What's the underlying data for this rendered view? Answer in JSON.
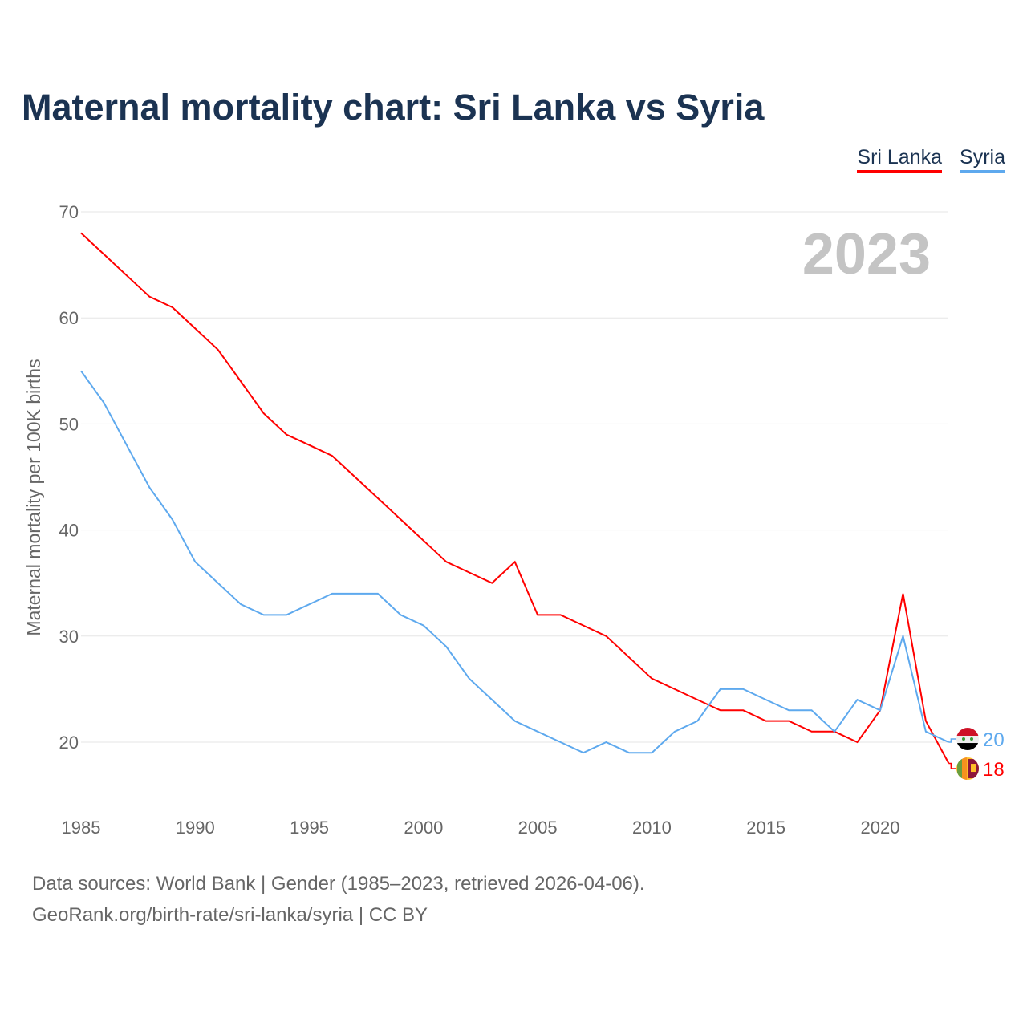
{
  "chart_data": {
    "type": "line",
    "title": "Maternal mortality chart: Sri Lanka vs Syria",
    "xlabel": "",
    "ylabel": "Maternal mortality per 100K births",
    "ylim": [
      15,
      70
    ],
    "xlim": [
      1985,
      2023
    ],
    "yticks": [
      20,
      30,
      40,
      50,
      60,
      70
    ],
    "xticks": [
      1985,
      1990,
      1995,
      2000,
      2005,
      2010,
      2015,
      2020
    ],
    "grid": true,
    "legend_position": "top-right",
    "year_watermark": "2023",
    "x": [
      1985,
      1986,
      1987,
      1988,
      1989,
      1990,
      1991,
      1992,
      1993,
      1994,
      1995,
      1996,
      1997,
      1998,
      1999,
      2000,
      2001,
      2002,
      2003,
      2004,
      2005,
      2006,
      2007,
      2008,
      2009,
      2010,
      2011,
      2012,
      2013,
      2014,
      2015,
      2016,
      2017,
      2018,
      2019,
      2020,
      2021,
      2022,
      2023
    ],
    "series": [
      {
        "name": "Sri Lanka",
        "color": "#ff0000",
        "end_label": "18",
        "values": [
          68,
          66,
          64,
          62,
          61,
          59,
          57,
          54,
          51,
          49,
          48,
          47,
          45,
          43,
          41,
          39,
          37,
          36,
          35,
          37,
          32,
          32,
          31,
          30,
          28,
          26,
          25,
          24,
          23,
          23,
          22,
          22,
          21,
          21,
          20,
          23,
          34,
          22,
          18
        ]
      },
      {
        "name": "Syria",
        "color": "#5ea9ee",
        "end_label": "20",
        "values": [
          55,
          52,
          48,
          44,
          41,
          37,
          35,
          33,
          32,
          32,
          33,
          34,
          34,
          34,
          32,
          31,
          29,
          26,
          24,
          22,
          21,
          20,
          19,
          20,
          19,
          19,
          21,
          22,
          25,
          25,
          24,
          23,
          23,
          21,
          24,
          23,
          30,
          21,
          20
        ]
      }
    ]
  },
  "footer": {
    "line1": "Data sources: World Bank | Gender (1985–2023, retrieved 2026-04-06).",
    "line2": "GeoRank.org/birth-rate/sri-lanka/syria | CC BY"
  }
}
